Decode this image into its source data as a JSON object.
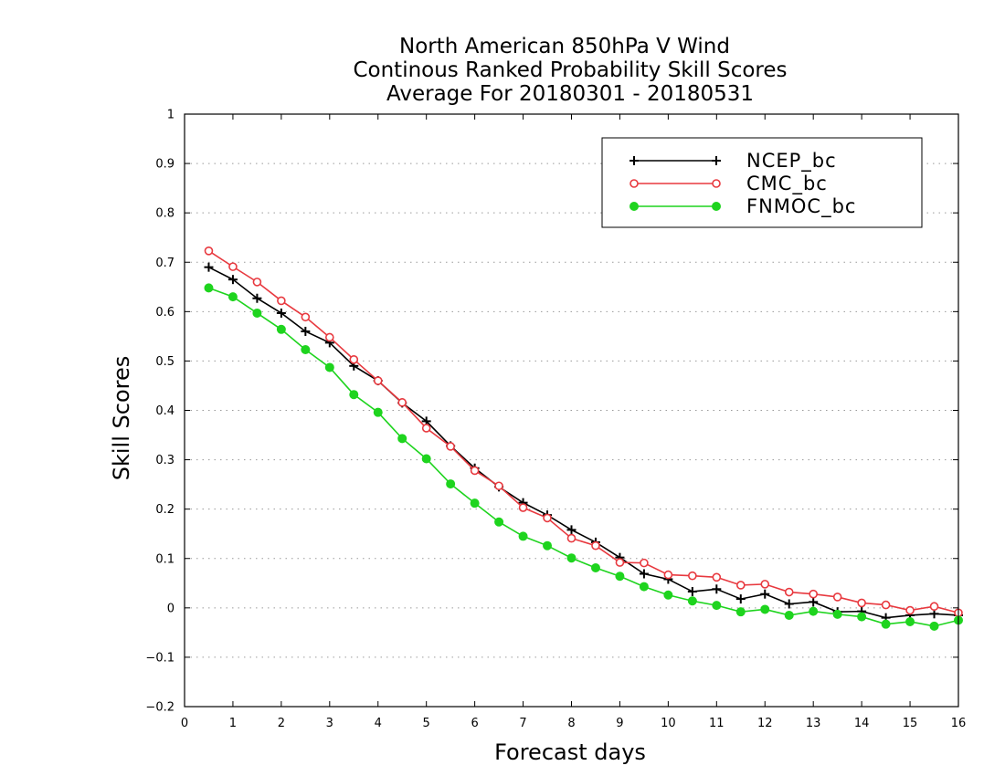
{
  "chart_data": {
    "type": "line",
    "title": [
      "North American 850hPa V Wind",
      "Continous Ranked Probability Skill Scores",
      "Average For 20180301 - 20180531"
    ],
    "xlabel": "Forecast days",
    "ylabel": "Skill Scores",
    "xlim": [
      0,
      16
    ],
    "ylim": [
      -0.2,
      1
    ],
    "xticks": [
      "0",
      "1",
      "2",
      "3",
      "4",
      "5",
      "6",
      "7",
      "8",
      "9",
      "10",
      "11",
      "12",
      "13",
      "14",
      "15",
      "16"
    ],
    "yticks": [
      "−0.2",
      "−0.1",
      "0",
      "0.1",
      "0.2",
      "0.3",
      "0.4",
      "0.5",
      "0.6",
      "0.7",
      "0.8",
      "0.9",
      "1"
    ],
    "grid": true,
    "legend": "top-right",
    "x": [
      0.5,
      1,
      1.5,
      2,
      2.5,
      3,
      3.5,
      4,
      4.5,
      5,
      5.5,
      6,
      6.5,
      7,
      7.5,
      8,
      8.5,
      9,
      9.5,
      10,
      10.5,
      11,
      11.5,
      12,
      12.5,
      13,
      13.5,
      14,
      14.5,
      15,
      15.5,
      16
    ],
    "series": [
      {
        "name": "NCEP_bc",
        "color": "#000000",
        "marker": "plus",
        "values": [
          0.69,
          0.665,
          0.627,
          0.597,
          0.56,
          0.537,
          0.49,
          0.46,
          0.415,
          0.378,
          0.328,
          0.283,
          0.245,
          0.213,
          0.188,
          0.158,
          0.133,
          0.102,
          0.069,
          0.058,
          0.033,
          0.038,
          0.018,
          0.028,
          0.008,
          0.012,
          -0.008,
          -0.007,
          -0.02,
          -0.015,
          -0.012,
          -0.015
        ]
      },
      {
        "name": "CMC_bc",
        "color": "#e8393f",
        "marker": "open-circle",
        "values": [
          0.723,
          0.691,
          0.66,
          0.622,
          0.589,
          0.548,
          0.503,
          0.46,
          0.416,
          0.364,
          0.327,
          0.278,
          0.247,
          0.203,
          0.182,
          0.141,
          0.126,
          0.092,
          0.091,
          0.067,
          0.065,
          0.062,
          0.046,
          0.048,
          0.032,
          0.028,
          0.022,
          0.01,
          0.006,
          -0.005,
          0.003,
          -0.01
        ]
      },
      {
        "name": "FNMOC_bc",
        "color": "#1ed41e",
        "marker": "filled-circle",
        "values": [
          0.648,
          0.63,
          0.597,
          0.564,
          0.523,
          0.487,
          0.432,
          0.396,
          0.343,
          0.302,
          0.251,
          0.212,
          0.174,
          0.145,
          0.126,
          0.101,
          0.081,
          0.064,
          0.043,
          0.026,
          0.014,
          0.005,
          -0.008,
          -0.003,
          -0.015,
          -0.007,
          -0.013,
          -0.018,
          -0.033,
          -0.028,
          -0.037,
          -0.025
        ]
      }
    ]
  }
}
